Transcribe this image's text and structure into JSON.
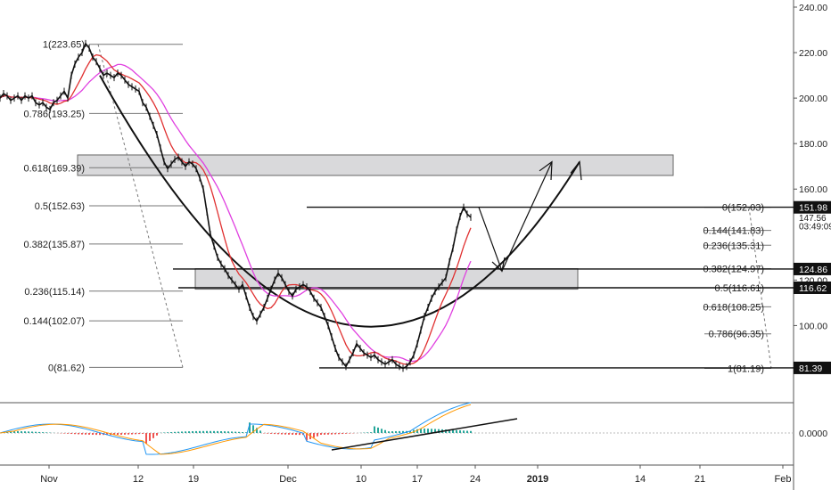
{
  "chart_data": {
    "type": "line",
    "title": "",
    "xlabel": "",
    "ylabel": "",
    "ylim": [
      60,
      243
    ],
    "grid": false,
    "x_ticks": [
      "Nov",
      "12",
      "19",
      "Dec",
      "10",
      "17",
      "24",
      "2019",
      "14",
      "21",
      "Feb"
    ],
    "y_ticks": [
      "240.00",
      "220.00",
      "200.00",
      "180.00",
      "160.00",
      "120.00",
      "100.00"
    ],
    "price_labels": [
      {
        "text": "151.98",
        "y": 151.98,
        "style": "dark"
      },
      {
        "text": "147.56",
        "y": 147.56,
        "style": "plain"
      },
      {
        "text": "03:49:09",
        "y": 143.8,
        "style": "plain"
      },
      {
        "text": "124.86",
        "y": 124.86,
        "style": "dark"
      },
      {
        "text": "116.62",
        "y": 116.62,
        "style": "dark"
      },
      {
        "text": "81.39",
        "y": 81.39,
        "style": "dark"
      }
    ],
    "fib_left": [
      {
        "label": "1(223.65)",
        "y": 223.65
      },
      {
        "label": "0.786(193.25)",
        "y": 193.25
      },
      {
        "label": "0.618(169.39)",
        "y": 169.39
      },
      {
        "label": "0.5(152.63)",
        "y": 152.63
      },
      {
        "label": "0.382(135.87)",
        "y": 135.87
      },
      {
        "label": "0.236(115.14)",
        "y": 115.14
      },
      {
        "label": "0.144(102.07)",
        "y": 102.07
      },
      {
        "label": "0(81.62)",
        "y": 81.62
      }
    ],
    "fib_right": [
      {
        "label": "0(152.03)",
        "y": 152.03
      },
      {
        "label": "0.144(141.83)",
        "y": 141.83
      },
      {
        "label": "0.236(135.31)",
        "y": 135.31
      },
      {
        "label": "0.382(124.97)",
        "y": 124.97
      },
      {
        "label": "0.5(116.61)",
        "y": 116.61
      },
      {
        "label": "0.618(108.25)",
        "y": 108.25
      },
      {
        "label": "0.786(96.35)",
        "y": 96.35
      },
      {
        "label": "1(81.19)",
        "y": 81.19
      }
    ],
    "zones": [
      {
        "name": "resistance-zone",
        "y_top": 175,
        "y_bottom": 166
      },
      {
        "name": "support-zone",
        "y_top": 125,
        "y_bottom": 116
      }
    ],
    "price_series": [
      [
        0,
        200
      ],
      [
        1,
        202
      ],
      [
        2,
        201
      ],
      [
        3,
        199
      ],
      [
        4,
        200
      ],
      [
        5,
        201
      ],
      [
        6,
        199
      ],
      [
        7,
        201
      ],
      [
        8,
        200
      ],
      [
        9,
        201
      ],
      [
        10,
        198
      ],
      [
        11,
        197
      ],
      [
        12,
        198
      ],
      [
        13,
        196
      ],
      [
        14,
        195
      ],
      [
        15,
        198
      ],
      [
        16,
        199
      ],
      [
        17,
        201
      ],
      [
        18,
        203
      ],
      [
        19,
        200
      ],
      [
        20,
        210
      ],
      [
        21,
        215
      ],
      [
        22,
        218
      ],
      [
        23,
        220
      ],
      [
        24,
        224
      ],
      [
        25,
        222
      ],
      [
        26,
        218
      ],
      [
        27,
        216
      ],
      [
        28,
        213
      ],
      [
        29,
        210
      ],
      [
        30,
        211
      ],
      [
        31,
        210
      ],
      [
        32,
        209
      ],
      [
        33,
        211
      ],
      [
        34,
        210
      ],
      [
        35,
        208
      ],
      [
        36,
        206
      ],
      [
        37,
        205
      ],
      [
        38,
        204
      ],
      [
        39,
        203
      ],
      [
        40,
        198
      ],
      [
        41,
        196
      ],
      [
        42,
        192
      ],
      [
        43,
        188
      ],
      [
        44,
        184
      ],
      [
        45,
        178
      ],
      [
        46,
        172
      ],
      [
        47,
        169
      ],
      [
        48,
        171
      ],
      [
        49,
        173
      ],
      [
        50,
        174
      ],
      [
        51,
        172
      ],
      [
        52,
        170
      ],
      [
        53,
        172
      ],
      [
        54,
        171
      ],
      [
        55,
        169
      ],
      [
        56,
        165
      ],
      [
        57,
        160
      ],
      [
        58,
        150
      ],
      [
        59,
        140
      ],
      [
        60,
        135
      ],
      [
        61,
        130
      ],
      [
        62,
        127
      ],
      [
        63,
        125
      ],
      [
        64,
        122
      ],
      [
        65,
        120
      ],
      [
        66,
        118
      ],
      [
        67,
        116
      ],
      [
        68,
        118
      ],
      [
        69,
        113
      ],
      [
        70,
        108
      ],
      [
        71,
        104
      ],
      [
        72,
        102
      ],
      [
        73,
        105
      ],
      [
        74,
        108
      ],
      [
        75,
        112
      ],
      [
        76,
        116
      ],
      [
        77,
        120
      ],
      [
        78,
        123
      ],
      [
        79,
        121
      ],
      [
        80,
        118
      ],
      [
        81,
        115
      ],
      [
        82,
        113
      ],
      [
        83,
        116
      ],
      [
        84,
        117
      ],
      [
        85,
        118
      ],
      [
        86,
        117
      ],
      [
        87,
        115
      ],
      [
        88,
        112
      ],
      [
        89,
        110
      ],
      [
        90,
        108
      ],
      [
        91,
        104
      ],
      [
        92,
        100
      ],
      [
        93,
        95
      ],
      [
        94,
        90
      ],
      [
        95,
        86
      ],
      [
        96,
        84
      ],
      [
        97,
        82
      ],
      [
        98,
        85
      ],
      [
        99,
        88
      ],
      [
        100,
        92
      ],
      [
        101,
        90
      ],
      [
        102,
        88
      ],
      [
        103,
        87
      ],
      [
        104,
        86
      ],
      [
        105,
        87
      ],
      [
        106,
        85
      ],
      [
        107,
        84
      ],
      [
        108,
        83
      ],
      [
        109,
        84
      ],
      [
        110,
        85
      ],
      [
        111,
        83
      ],
      [
        112,
        82
      ],
      [
        113,
        81.2
      ],
      [
        114,
        82
      ],
      [
        115,
        84
      ],
      [
        116,
        87
      ],
      [
        117,
        92
      ],
      [
        118,
        98
      ],
      [
        119,
        104
      ],
      [
        120,
        108
      ],
      [
        121,
        112
      ],
      [
        122,
        115
      ],
      [
        123,
        117
      ],
      [
        124,
        119
      ],
      [
        125,
        121
      ],
      [
        126,
        128
      ],
      [
        127,
        134
      ],
      [
        128,
        142
      ],
      [
        129,
        148
      ],
      [
        130,
        152
      ],
      [
        131,
        149
      ],
      [
        132,
        147.6
      ]
    ]
  }
}
